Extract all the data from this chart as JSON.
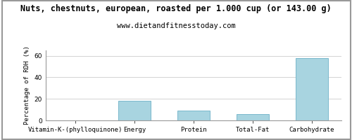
{
  "title": "Nuts, chestnuts, european, roasted per 1.000 cup (or 143.00 g)",
  "subtitle": "www.dietandfitnesstoday.com",
  "categories": [
    "Vitamin-K-(phylloquinone)",
    "Energy",
    "Protein",
    "Total-Fat",
    "Carbohydrate"
  ],
  "values": [
    0.0,
    18.0,
    9.0,
    6.0,
    58.0
  ],
  "bar_color": "#a8d4e0",
  "bar_edge_color": "#7ab8cc",
  "ylabel": "Percentage of RDH (%)",
  "ylim": [
    0,
    65
  ],
  "yticks": [
    0,
    20,
    40,
    60
  ],
  "background_color": "#ffffff",
  "plot_bg_color": "#ffffff",
  "title_fontsize": 8.5,
  "subtitle_fontsize": 7.5,
  "ylabel_fontsize": 6.5,
  "tick_fontsize": 6.5,
  "grid_color": "#cccccc",
  "border_color": "#999999"
}
